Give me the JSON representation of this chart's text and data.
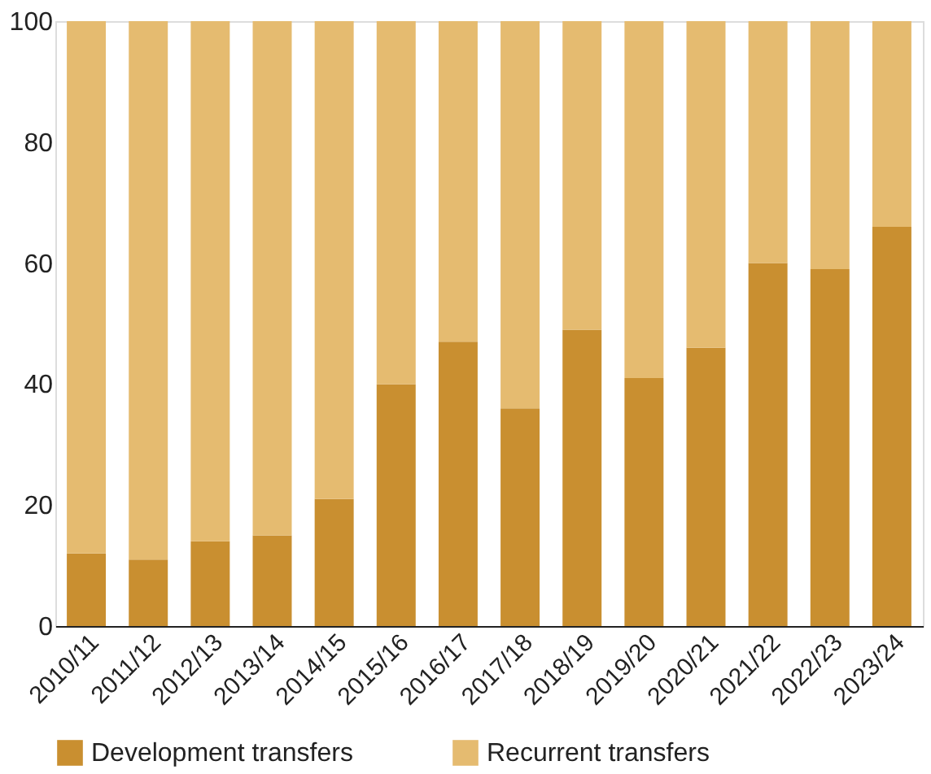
{
  "chart_data": {
    "type": "bar",
    "stacked": true,
    "categories": [
      "2010/11",
      "2011/12",
      "2012/13",
      "2013/14",
      "2014/15",
      "2015/16",
      "2016/17",
      "2017/18",
      "2018/19",
      "2019/20",
      "2020/21",
      "2021/22",
      "2022/23",
      "2023/24"
    ],
    "series": [
      {
        "name": "Development transfers",
        "color": "#c98f30",
        "values": [
          12,
          11,
          14,
          15,
          21,
          40,
          47,
          36,
          49,
          41,
          46,
          60,
          59,
          66
        ]
      },
      {
        "name": "Recurrent transfers",
        "color": "#e5bb70",
        "values": [
          88,
          89,
          86,
          85,
          79,
          60,
          53,
          64,
          51,
          59,
          54,
          40,
          41,
          34
        ]
      }
    ],
    "ylim": [
      0,
      100
    ],
    "yticks": [
      0,
      20,
      40,
      60,
      80,
      100
    ],
    "grid": false,
    "legend": "bottom"
  }
}
